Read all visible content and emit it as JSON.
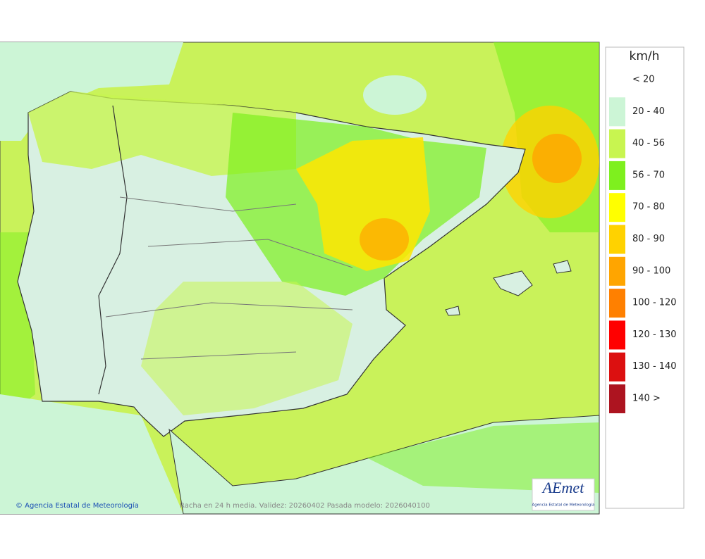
{
  "legend": {
    "title": "km/h",
    "items": [
      {
        "label": "< 20"
      },
      {
        "label": "20 - 40",
        "color": "#ccf5d6"
      },
      {
        "label": "40 - 56",
        "color": "#c8f550"
      },
      {
        "label": "56 - 70",
        "color": "#7ef01e"
      },
      {
        "label": "70 - 80",
        "color": "#ffff00"
      },
      {
        "label": "80 - 90",
        "color": "#ffd200"
      },
      {
        "label": "90 - 100",
        "color": "#ffa500"
      },
      {
        "label": "100 - 120",
        "color": "#ff8000"
      },
      {
        "label": "120 - 130",
        "color": "#ff0000"
      },
      {
        "label": "130 - 140",
        "color": "#dc1010"
      },
      {
        "label": "140 >",
        "color": "#ad1420"
      }
    ]
  },
  "footer": {
    "credit": "© Agencia Estatal de Meteorología",
    "caption": "Racha en 24 h media. Validez: 20260402 Pasada modelo: 2026040100"
  },
  "logo": {
    "name": "AEmet",
    "subtitle": "Agencia Estatal de Meteorología"
  }
}
